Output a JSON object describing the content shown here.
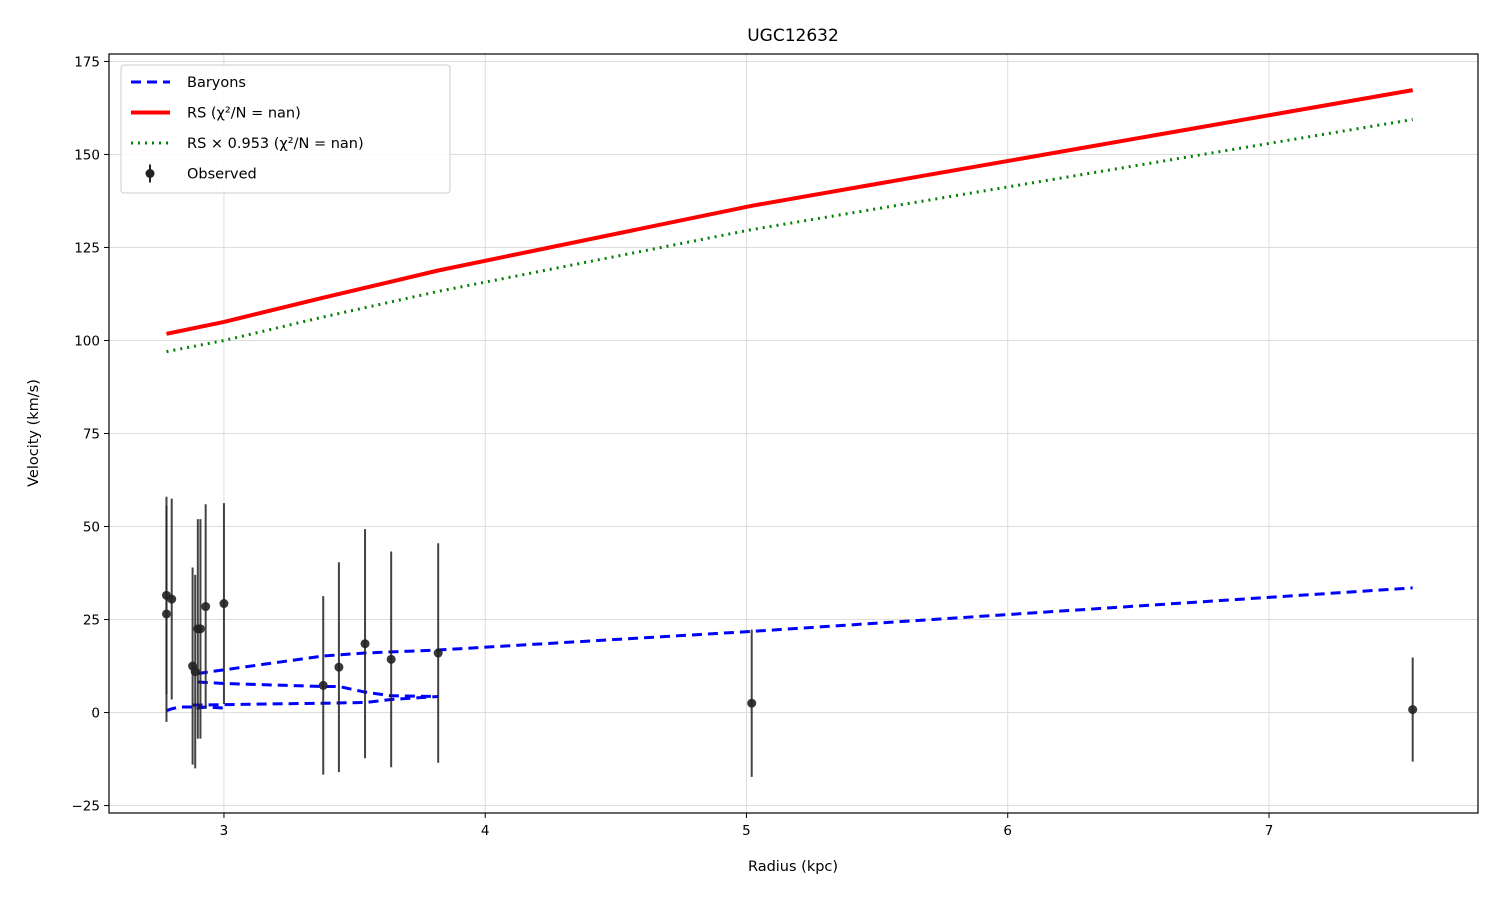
{
  "chart_data": {
    "type": "line",
    "title": "UGC12632",
    "xlabel": "Radius (kpc)",
    "ylabel": "Velocity (km/s)",
    "xlim": [
      2.56,
      7.8
    ],
    "ylim": [
      -27,
      177
    ],
    "xticks": [
      3,
      4,
      5,
      6,
      7
    ],
    "yticks": [
      -25,
      0,
      25,
      50,
      75,
      100,
      125,
      150,
      175
    ],
    "xtick_labels": [
      "3",
      "4",
      "5",
      "6",
      "7"
    ],
    "ytick_labels": [
      "−25",
      "0",
      "25",
      "50",
      "75",
      "100",
      "125",
      "150",
      "175"
    ],
    "grid": true,
    "legend_position": "upper-left",
    "series": [
      {
        "name": "Baryons",
        "style": "dashed",
        "color": "#0000ff",
        "x": [
          2.78,
          2.8,
          2.83,
          2.9,
          2.88,
          2.89,
          2.93,
          3.0,
          2.9,
          3.38,
          3.44,
          3.54,
          3.64,
          3.82,
          5.02,
          7.55
        ],
        "y": [
          0.5,
          1.0,
          1.5,
          1.0,
          1.5,
          2.0,
          1.5,
          1.2,
          8.2,
          7.0,
          7.0,
          5.5,
          4.5,
          4.3,
          21.8,
          33.5
        ],
        "segments": [
          {
            "x": [
              2.78,
              2.8,
              2.83,
              2.88,
              2.89,
              2.9,
              2.93,
              3.0
            ],
            "y": [
              0.5,
              1.0,
              1.5,
              1.5,
              1.8,
              1.2,
              1.5,
              1.2
            ]
          },
          {
            "x": [
              2.88,
              2.9
            ],
            "y": [
              2.0,
              2.0
            ]
          },
          {
            "x": [
              2.9,
              3.0,
              3.38,
              3.44,
              3.54,
              3.64,
              3.82
            ],
            "y": [
              8.2,
              7.8,
              7.0,
              7.0,
              5.5,
              4.5,
              4.3
            ]
          },
          {
            "x": [
              2.9,
              3.38,
              3.54,
              3.82,
              5.02,
              7.55
            ],
            "y": [
              10.5,
              15.2,
              16.0,
              16.8,
              21.8,
              33.5
            ]
          },
          {
            "x": [
              2.88,
              3.38,
              3.54,
              3.64,
              3.82
            ],
            "y": [
              2.0,
              2.5,
              2.7,
              3.5,
              4.3
            ]
          }
        ]
      },
      {
        "name": "RS (χ²/N = nan)",
        "style": "solid",
        "color": "#ff0000",
        "x": [
          2.78,
          3.0,
          3.38,
          3.82,
          5.02,
          7.55
        ],
        "y": [
          101.8,
          105.0,
          111.5,
          118.8,
          136.2,
          167.3
        ]
      },
      {
        "name": "RS × 0.953 (χ²/N = nan)",
        "style": "dotted",
        "color": "#008000",
        "x": [
          2.78,
          3.0,
          3.38,
          3.82,
          5.02,
          7.55
        ],
        "y": [
          97.0,
          100.0,
          106.3,
          113.2,
          129.8,
          159.4
        ]
      },
      {
        "name": "Observed",
        "style": "errorbar",
        "color": "#222222",
        "points": [
          {
            "x": 2.78,
            "y": 31.5,
            "err": 26.5
          },
          {
            "x": 2.78,
            "y": 26.5,
            "err": 29.0
          },
          {
            "x": 2.8,
            "y": 30.5,
            "err": 27.0
          },
          {
            "x": 2.88,
            "y": 12.5,
            "err": 26.5
          },
          {
            "x": 2.89,
            "y": 11.0,
            "err": 26.0
          },
          {
            "x": 2.9,
            "y": 22.5,
            "err": 29.5
          },
          {
            "x": 2.91,
            "y": 22.5,
            "err": 29.5
          },
          {
            "x": 2.93,
            "y": 28.5,
            "err": 27.5
          },
          {
            "x": 3.0,
            "y": 29.3,
            "err": 27.0
          },
          {
            "x": 3.38,
            "y": 7.3,
            "err": 24.0
          },
          {
            "x": 3.44,
            "y": 12.2,
            "err": 28.2
          },
          {
            "x": 3.54,
            "y": 18.5,
            "err": 30.8
          },
          {
            "x": 3.64,
            "y": 14.3,
            "err": 29.0
          },
          {
            "x": 3.82,
            "y": 16.0,
            "err": 29.5
          },
          {
            "x": 5.02,
            "y": 2.5,
            "err": 19.8
          },
          {
            "x": 7.55,
            "y": 0.8,
            "err": 14.0
          }
        ]
      }
    ]
  }
}
